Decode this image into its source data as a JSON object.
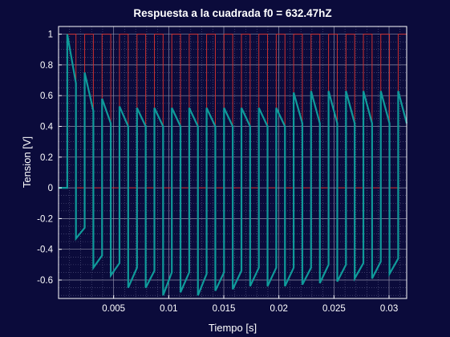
{
  "chart_data": {
    "type": "line",
    "title": "Respuesta a la cuadrada f0 = 632.47hZ",
    "xlabel": "Tiempo [s]",
    "ylabel": "Tension [V]",
    "xlim": [
      0,
      0.0316
    ],
    "ylim": [
      -0.72,
      1.05
    ],
    "xticks": [
      0.005,
      0.01,
      0.015,
      0.02,
      0.025,
      0.03
    ],
    "xtick_labels": [
      "0.005",
      "0.01",
      "0.015",
      "0.02",
      "0.025",
      "0.03"
    ],
    "yticks": [
      -0.6,
      -0.4,
      -0.2,
      0,
      0.2,
      0.4,
      0.6,
      0.8,
      1
    ],
    "ytick_labels": [
      "-0.6",
      "-0.4",
      "-0.2",
      "0",
      "0.2",
      "0.4",
      "0.6",
      "0.8",
      "1"
    ],
    "grid": true,
    "minor_grid": true,
    "background": "#0b0b3b",
    "axes_color": "#ffffff",
    "series": [
      {
        "color": "#cc2f2f",
        "style": "square wave",
        "frequency_hz": 632.47,
        "amplitude": 1,
        "period": 0.0015811,
        "start_time": 0.00079,
        "x": [
          0,
          0.00079,
          0.00079,
          0.00158,
          0.00158,
          0.00237,
          0.00237,
          0.00316,
          0.00316,
          0.00395,
          0.00395,
          0.00474,
          0.00474,
          0.00553,
          0.00553,
          0.00632,
          0.00632,
          0.00712,
          0.00712,
          0.00791,
          0.00791,
          0.0087,
          0.0087,
          0.00949,
          0.00949,
          0.01028,
          0.01028,
          0.01107,
          0.01107,
          0.01186,
          0.01186,
          0.01265,
          0.01265,
          0.01344,
          0.01344,
          0.01423,
          0.01423,
          0.01502,
          0.01502,
          0.01581,
          0.01581,
          0.0166,
          0.0166,
          0.01739,
          0.01739,
          0.01818,
          0.01818,
          0.01897,
          0.01897,
          0.01976,
          0.01976,
          0.02055,
          0.02055,
          0.02134,
          0.02134,
          0.02213,
          0.02213,
          0.02292,
          0.02292,
          0.02372,
          0.02372,
          0.02451,
          0.02451,
          0.0253,
          0.0253,
          0.02609,
          0.02609,
          0.02688,
          0.02688,
          0.02767,
          0.02767,
          0.02846,
          0.02846,
          0.02925,
          0.02925,
          0.03004,
          0.03004,
          0.03083,
          0.03083,
          0.0316
        ],
        "y": [
          0,
          0,
          1,
          1,
          0,
          0,
          1,
          1,
          0,
          0,
          1,
          1,
          0,
          0,
          1,
          1,
          0,
          0,
          1,
          1,
          0,
          0,
          1,
          1,
          0,
          0,
          1,
          1,
          0,
          0,
          1,
          1,
          0,
          0,
          1,
          1,
          0,
          0,
          1,
          1,
          0,
          0,
          1,
          1,
          0,
          0,
          1,
          1,
          0,
          0,
          1,
          1,
          0,
          0,
          1,
          1,
          0,
          0,
          1,
          1,
          0,
          0,
          1,
          1,
          0,
          0,
          1,
          1,
          0,
          0,
          1,
          1,
          0,
          0,
          1,
          1,
          0,
          0,
          1,
          1
        ]
      },
      {
        "color": "#0f9a9a",
        "style": "response",
        "x": [
          0,
          0.00079,
          0.00079,
          0.00158,
          0.00158,
          0.00237,
          0.00237,
          0.00316,
          0.00316,
          0.00395,
          0.00395,
          0.00474,
          0.00474,
          0.00553,
          0.00553,
          0.00632,
          0.00632,
          0.00712,
          0.00712,
          0.00791,
          0.00791,
          0.0087,
          0.0087,
          0.00949,
          0.00949,
          0.01028,
          0.01028,
          0.01107,
          0.01107,
          0.01186,
          0.01186,
          0.01265,
          0.01265,
          0.01344,
          0.01344,
          0.01423,
          0.01423,
          0.01502,
          0.01502,
          0.01581,
          0.01581,
          0.0166,
          0.0166,
          0.01739,
          0.01739,
          0.01818,
          0.01818,
          0.01897,
          0.01897,
          0.01976,
          0.01976,
          0.02055,
          0.02055,
          0.02134,
          0.02134,
          0.02213,
          0.02213,
          0.02292,
          0.02292,
          0.02372,
          0.02372,
          0.02451,
          0.02451,
          0.0253,
          0.0253,
          0.02609,
          0.02609,
          0.02688,
          0.02688,
          0.02767,
          0.02767,
          0.02846,
          0.02846,
          0.02925,
          0.02925,
          0.03004,
          0.03004,
          0.03083,
          0.03083,
          0.0316
        ],
        "y": [
          0,
          0,
          1,
          0.68,
          -0.33,
          -0.26,
          0.75,
          0.5,
          -0.52,
          -0.44,
          0.58,
          0.42,
          -0.57,
          -0.49,
          0.53,
          0.4,
          -0.65,
          -0.52,
          0.52,
          0.4,
          -0.65,
          -0.54,
          0.52,
          0.4,
          -0.7,
          -0.55,
          0.52,
          0.4,
          -0.68,
          -0.55,
          0.52,
          0.4,
          -0.7,
          -0.56,
          0.52,
          0.4,
          -0.67,
          -0.55,
          0.52,
          0.4,
          -0.66,
          -0.54,
          0.52,
          0.4,
          -0.64,
          -0.52,
          0.52,
          0.4,
          -0.64,
          -0.52,
          0.52,
          0.4,
          -0.64,
          -0.52,
          0.62,
          0.42,
          -0.63,
          -0.52,
          0.63,
          0.42,
          -0.62,
          -0.5,
          0.63,
          0.42,
          -0.61,
          -0.5,
          0.63,
          0.42,
          -0.59,
          -0.49,
          0.63,
          0.42,
          -0.59,
          -0.48,
          0.63,
          0.42,
          -0.56,
          -0.46,
          0.63,
          0.42
        ]
      }
    ]
  }
}
